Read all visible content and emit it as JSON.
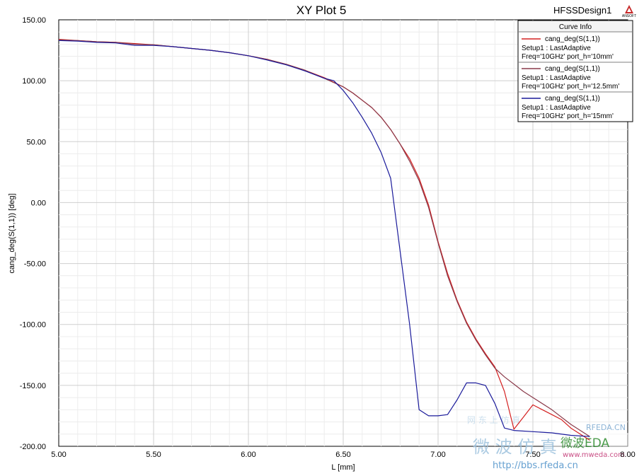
{
  "header": {
    "title": "XY Plot 5",
    "design_name": "HFSSDesign1",
    "logo_text": "ANSOFT"
  },
  "legend": {
    "title": "Curve Info",
    "entries": [
      {
        "line1": "cang_deg(S(1,1))",
        "line2": "Setup1 : LastAdaptive",
        "line3": "Freq='10GHz' port_h='10mm'",
        "color": "#d42020"
      },
      {
        "line1": "cang_deg(S(1,1))",
        "line2": "Setup1 : LastAdaptive",
        "line3": "Freq='10GHz' port_h='12.5mm'",
        "color": "#8a3a4a"
      },
      {
        "line1": "cang_deg(S(1,1))",
        "line2": "Setup1 : LastAdaptive",
        "line3": "Freq='10GHz' port_h='15mm'",
        "color": "#1a1a9a"
      }
    ]
  },
  "watermark": {
    "text1": "微 波 仿 真",
    "text2": "网 东 上 仿 真",
    "text3": "http://bbs.rfeda.cn",
    "text4": "RFEDA.CN",
    "text5": "微波EDA",
    "text6": "www.mweda.com"
  },
  "chart_data": {
    "type": "line",
    "title": "XY Plot 5",
    "xlabel": "L [mm]",
    "ylabel": "cang_deg(S(1,1)) [deg]",
    "xlim": [
      5.0,
      8.0
    ],
    "ylim": [
      -200,
      150
    ],
    "grid": true,
    "legend_position": "top-right",
    "xticks": [
      "5.00",
      "5.50",
      "6.00",
      "6.50",
      "7.00",
      "7.50",
      "8.00"
    ],
    "yticks": [
      "150.00",
      "100.00",
      "50.00",
      "0.00",
      "-50.00",
      "-100.00",
      "-150.00",
      "-200.00"
    ],
    "series": [
      {
        "name": "Freq='10GHz' port_h='10mm'",
        "color": "#d42020",
        "x": [
          5.0,
          5.1,
          5.2,
          5.3,
          5.4,
          5.5,
          5.6,
          5.7,
          5.8,
          5.9,
          6.0,
          6.1,
          6.2,
          6.3,
          6.4,
          6.5,
          6.55,
          6.6,
          6.65,
          6.7,
          6.75,
          6.8,
          6.85,
          6.9,
          6.95,
          7.0,
          7.05,
          7.1,
          7.15,
          7.2,
          7.25,
          7.3,
          7.35,
          7.4,
          7.45,
          7.5,
          7.55,
          7.6,
          7.65,
          7.7,
          7.8
        ],
        "y": [
          134,
          133,
          132,
          131.5,
          130.5,
          129.5,
          128,
          126.5,
          125,
          123,
          120.5,
          117.5,
          113.5,
          108.5,
          102.5,
          95,
          90,
          84,
          78,
          70,
          60,
          48,
          36,
          20,
          -2,
          -32,
          -58,
          -80,
          -98,
          -112,
          -124,
          -135,
          -155,
          -186,
          -176,
          -166,
          -170,
          -174,
          -178,
          -185,
          -195
        ]
      },
      {
        "name": "Freq='10GHz' port_h='12.5mm'",
        "color": "#8a3a4a",
        "x": [
          5.0,
          5.1,
          5.2,
          5.3,
          5.4,
          5.5,
          5.6,
          5.7,
          5.8,
          5.9,
          6.0,
          6.1,
          6.2,
          6.3,
          6.4,
          6.5,
          6.55,
          6.6,
          6.65,
          6.7,
          6.75,
          6.8,
          6.85,
          6.9,
          6.95,
          7.0,
          7.05,
          7.1,
          7.15,
          7.2,
          7.25,
          7.3,
          7.35,
          7.4,
          7.45,
          7.5,
          7.6,
          7.7,
          7.8
        ],
        "y": [
          133.5,
          133,
          132,
          131.5,
          130,
          129.5,
          128,
          126.5,
          125,
          123,
          120.5,
          117.5,
          113.5,
          108.5,
          102,
          95,
          90,
          84,
          78,
          70,
          60,
          48,
          34,
          18,
          -4,
          -33,
          -60,
          -81,
          -99,
          -113,
          -125,
          -136,
          -143,
          -149,
          -155,
          -160,
          -170,
          -182,
          -192
        ]
      },
      {
        "name": "Freq='10GHz' port_h='15mm'",
        "color": "#1a1a9a",
        "x": [
          5.0,
          5.1,
          5.2,
          5.3,
          5.4,
          5.5,
          5.6,
          5.7,
          5.8,
          5.9,
          6.0,
          6.1,
          6.2,
          6.3,
          6.4,
          6.45,
          6.5,
          6.55,
          6.6,
          6.65,
          6.7,
          6.75,
          6.8,
          6.85,
          6.9,
          6.95,
          7.0,
          7.05,
          7.1,
          7.15,
          7.2,
          7.25,
          7.3,
          7.35,
          7.4,
          7.5,
          7.6,
          7.7,
          7.8
        ],
        "y": [
          133,
          132.5,
          131.5,
          131,
          129,
          129,
          128,
          126.5,
          125,
          123,
          120.5,
          117,
          113,
          108,
          102,
          100,
          92,
          82,
          70,
          57,
          41,
          20,
          -40,
          -100,
          -170,
          -175,
          -175,
          -174,
          -162,
          -148,
          -148,
          -150,
          -165,
          -185,
          -187,
          -188,
          -189,
          -191,
          -192
        ]
      }
    ]
  }
}
